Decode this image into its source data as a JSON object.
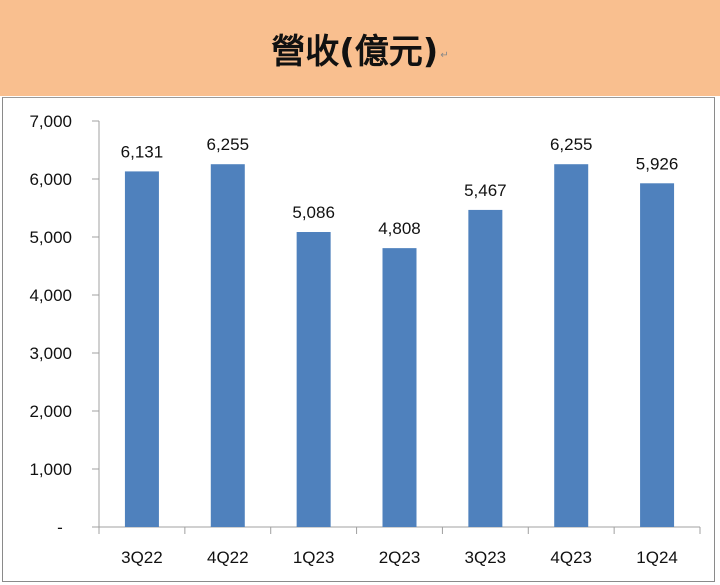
{
  "header": {
    "title": "營收(億元)",
    "title_mark": "↵",
    "bg_color": "#F9BF8F"
  },
  "chart_data": {
    "type": "bar",
    "title": "營收(億元)",
    "xlabel": "",
    "ylabel": "",
    "categories": [
      "3Q22",
      "4Q22",
      "1Q23",
      "2Q23",
      "3Q23",
      "4Q23",
      "1Q24"
    ],
    "values": [
      6131,
      6255,
      5086,
      4808,
      5467,
      6255,
      5926
    ],
    "data_labels": [
      "6,131",
      "6,255",
      "5,086",
      "4,808",
      "5,467",
      "6,255",
      "5,926"
    ],
    "ylim": [
      0,
      7000
    ],
    "yticks": [
      0,
      1000,
      2000,
      3000,
      4000,
      5000,
      6000,
      7000
    ],
    "ytick_labels": [
      "-",
      "1,000",
      "2,000",
      "3,000",
      "4,000",
      "5,000",
      "6,000",
      "7,000"
    ],
    "grid": false,
    "legend": null,
    "bar_color": "#4F81BD"
  }
}
